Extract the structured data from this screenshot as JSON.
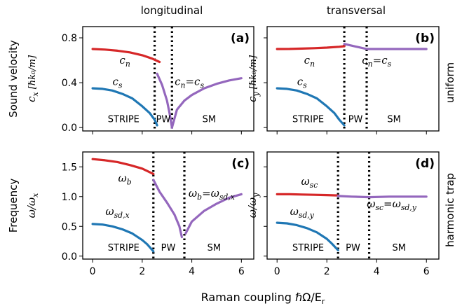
{
  "column_titles": [
    "longitudinal",
    "transversal"
  ],
  "row_titles": [
    "uniform",
    "harmonic trap"
  ],
  "xlabel": "Raman coupling ℏΩ/E",
  "xlabel_sub": "r",
  "colors": {
    "c_n": "#d62728",
    "c_s": "#1f77b4",
    "merged": "#9467bd",
    "text_black": "#000000"
  },
  "chart_data": [
    {
      "type": "line",
      "panel": "(a)",
      "ylabel_pre": "Sound velocity",
      "ylabel": "c",
      "ylabel_sub": "x",
      "ylabel_unit": "[ℏk₀/m]",
      "xlim": [
        -0.4,
        6.5
      ],
      "ylim": [
        -0.03,
        0.9
      ],
      "xticks": [],
      "yticks": [
        0.0,
        0.4,
        0.8
      ],
      "ytick_labels": [
        "0.0",
        "0.4",
        "0.8"
      ],
      "vlines": [
        2.5,
        3.2
      ],
      "phase_labels": [
        {
          "text": "STRIPE",
          "x": 1.25,
          "y": 0.08
        },
        {
          "text": "PW",
          "x": 2.85,
          "y": 0.08
        },
        {
          "text": "SM",
          "x": 4.7,
          "y": 0.08
        }
      ],
      "curve_labels": [
        {
          "text": "c",
          "sub": "n",
          "x": 1.3,
          "y": 0.57,
          "color": "c_n"
        },
        {
          "text": "c",
          "sub": "s",
          "x": 1.0,
          "y": 0.38,
          "color": "c_s"
        },
        {
          "text": "c",
          "sub": "n",
          "text2": "=c",
          "sub2": "s",
          "x": 3.9,
          "y": 0.38,
          "color": "merged"
        }
      ],
      "series": [
        {
          "color": "c_n",
          "x": [
            0.0,
            0.5,
            1.0,
            1.5,
            2.0,
            2.4,
            2.7
          ],
          "y": [
            0.7,
            0.695,
            0.685,
            0.67,
            0.645,
            0.615,
            0.585
          ]
        },
        {
          "color": "c_s",
          "x": [
            0.0,
            0.4,
            0.8,
            1.2,
            1.6,
            2.0,
            2.3,
            2.5,
            2.6
          ],
          "y": [
            0.35,
            0.345,
            0.33,
            0.3,
            0.26,
            0.19,
            0.13,
            0.07,
            0.02
          ]
        },
        {
          "color": "merged",
          "x": [
            2.6,
            2.8,
            3.0,
            3.1,
            3.2
          ],
          "y": [
            0.48,
            0.38,
            0.24,
            0.13,
            0.0
          ]
        },
        {
          "color": "merged",
          "x": [
            3.2,
            3.4,
            3.7,
            4.0,
            4.5,
            5.0,
            5.5,
            6.0
          ],
          "y": [
            0.0,
            0.16,
            0.24,
            0.29,
            0.35,
            0.39,
            0.42,
            0.44
          ]
        }
      ]
    },
    {
      "type": "line",
      "panel": "(b)",
      "ylabel_pre": "",
      "ylabel": "c",
      "ylabel_sub": "y",
      "ylabel_unit": "[ℏk₀/m]",
      "xlim": [
        -0.4,
        6.5
      ],
      "ylim": [
        -0.03,
        0.9
      ],
      "xticks": [],
      "yticks": [],
      "ytick_labels": [],
      "vlines": [
        2.7,
        3.6
      ],
      "phase_labels": [
        {
          "text": "STRIPE",
          "x": 1.25,
          "y": 0.08
        },
        {
          "text": "PW",
          "x": 3.15,
          "y": 0.08
        },
        {
          "text": "SM",
          "x": 4.7,
          "y": 0.08
        }
      ],
      "curve_labels": [
        {
          "text": "c",
          "sub": "n",
          "x": 1.3,
          "y": 0.57,
          "color": "c_n"
        },
        {
          "text": "c",
          "sub": "s",
          "x": 1.0,
          "y": 0.38,
          "color": "c_s"
        },
        {
          "text": "c",
          "sub": "n",
          "text2": "=c",
          "sub2": "s",
          "x": 4.0,
          "y": 0.57,
          "color": "merged"
        }
      ],
      "series": [
        {
          "color": "c_n",
          "x": [
            0.0,
            0.5,
            1.0,
            1.5,
            2.0,
            2.5,
            2.7
          ],
          "y": [
            0.7,
            0.701,
            0.704,
            0.708,
            0.713,
            0.72,
            0.725
          ]
        },
        {
          "color": "c_s",
          "x": [
            0.0,
            0.4,
            0.8,
            1.2,
            1.6,
            2.0,
            2.3,
            2.5,
            2.7
          ],
          "y": [
            0.35,
            0.345,
            0.33,
            0.3,
            0.26,
            0.19,
            0.13,
            0.07,
            0.02
          ]
        },
        {
          "color": "merged",
          "x": [
            2.7,
            3.0,
            3.3,
            3.6,
            4.0,
            5.0,
            6.0
          ],
          "y": [
            0.745,
            0.73,
            0.715,
            0.7,
            0.7,
            0.7,
            0.7
          ]
        }
      ]
    },
    {
      "type": "line",
      "panel": "(c)",
      "ylabel_pre": "Frequency",
      "ylabel": "ω/ω",
      "ylabel_sub": "x",
      "ylabel_unit": "",
      "xlim": [
        -0.4,
        6.5
      ],
      "ylim": [
        -0.05,
        1.75
      ],
      "xticks": [
        0,
        2,
        4,
        6
      ],
      "yticks": [
        0.0,
        0.5,
        1.0,
        1.5
      ],
      "ytick_labels": [
        "0.0",
        "0.5",
        "1.0",
        "1.5"
      ],
      "vlines": [
        2.45,
        3.7
      ],
      "phase_labels": [
        {
          "text": "STRIPE",
          "x": 1.25,
          "y": 0.15
        },
        {
          "text": "PW",
          "x": 3.05,
          "y": 0.15
        },
        {
          "text": "SM",
          "x": 4.9,
          "y": 0.15
        }
      ],
      "curve_labels": [
        {
          "text": "ω",
          "sub": "b",
          "x": 1.3,
          "y": 1.25,
          "color": "c_n"
        },
        {
          "text": "ω",
          "sub": "sd,x",
          "x": 1.0,
          "y": 0.69,
          "color": "c_s"
        },
        {
          "text": "ω",
          "sub": "b",
          "text2": "=ω",
          "sub2": "sd,x",
          "x": 4.8,
          "y": 1.0,
          "color": "merged"
        }
      ],
      "series": [
        {
          "color": "c_n",
          "x": [
            0.0,
            0.5,
            1.0,
            1.5,
            2.0,
            2.45
          ],
          "y": [
            1.63,
            1.61,
            1.58,
            1.53,
            1.47,
            1.38
          ]
        },
        {
          "color": "c_s",
          "x": [
            0.0,
            0.4,
            0.8,
            1.2,
            1.6,
            2.0,
            2.2,
            2.45
          ],
          "y": [
            0.54,
            0.53,
            0.5,
            0.45,
            0.38,
            0.27,
            0.2,
            0.08
          ]
        },
        {
          "color": "merged",
          "x": [
            2.45,
            2.7,
            3.0,
            3.3,
            3.5,
            3.6
          ],
          "y": [
            1.28,
            1.08,
            0.9,
            0.7,
            0.5,
            0.32
          ]
        },
        {
          "color": "merged",
          "x": [
            3.75,
            4.0,
            4.5,
            5.0,
            5.5,
            6.0
          ],
          "y": [
            0.38,
            0.58,
            0.76,
            0.88,
            0.98,
            1.04
          ]
        }
      ]
    },
    {
      "type": "line",
      "panel": "(d)",
      "ylabel_pre": "",
      "ylabel": "ω/ω",
      "ylabel_sub": "y",
      "ylabel_unit": "",
      "xlim": [
        -0.4,
        6.5
      ],
      "ylim": [
        -0.05,
        1.75
      ],
      "xticks": [
        0,
        2,
        4,
        6
      ],
      "yticks": [],
      "ytick_labels": [],
      "vlines": [
        2.45,
        3.7
      ],
      "phase_labels": [
        {
          "text": "STRIPE",
          "x": 1.25,
          "y": 0.15
        },
        {
          "text": "PW",
          "x": 3.05,
          "y": 0.15
        },
        {
          "text": "SM",
          "x": 4.9,
          "y": 0.15
        }
      ],
      "curve_labels": [
        {
          "text": "ω",
          "sub": "sc",
          "x": 1.3,
          "y": 1.2,
          "color": "c_n"
        },
        {
          "text": "ω",
          "sub": "sd,y",
          "x": 1.0,
          "y": 0.69,
          "color": "c_s"
        },
        {
          "text": "ω",
          "sub": "sc",
          "text2": "=ω",
          "sub2": "sd,y",
          "x": 4.6,
          "y": 0.82,
          "color": "merged"
        }
      ],
      "series": [
        {
          "color": "c_n",
          "x": [
            0.0,
            0.5,
            1.0,
            1.5,
            2.0,
            2.45
          ],
          "y": [
            1.04,
            1.04,
            1.035,
            1.03,
            1.025,
            1.02
          ]
        },
        {
          "color": "c_s",
          "x": [
            0.0,
            0.4,
            0.8,
            1.2,
            1.6,
            2.0,
            2.2,
            2.45
          ],
          "y": [
            0.56,
            0.55,
            0.52,
            0.47,
            0.4,
            0.29,
            0.21,
            0.1
          ]
        },
        {
          "color": "merged",
          "x": [
            2.45,
            3.0,
            3.7,
            4.5,
            5.0,
            6.0
          ],
          "y": [
            1.01,
            1.0,
            0.99,
            1.0,
            1.0,
            1.0
          ]
        }
      ]
    }
  ]
}
